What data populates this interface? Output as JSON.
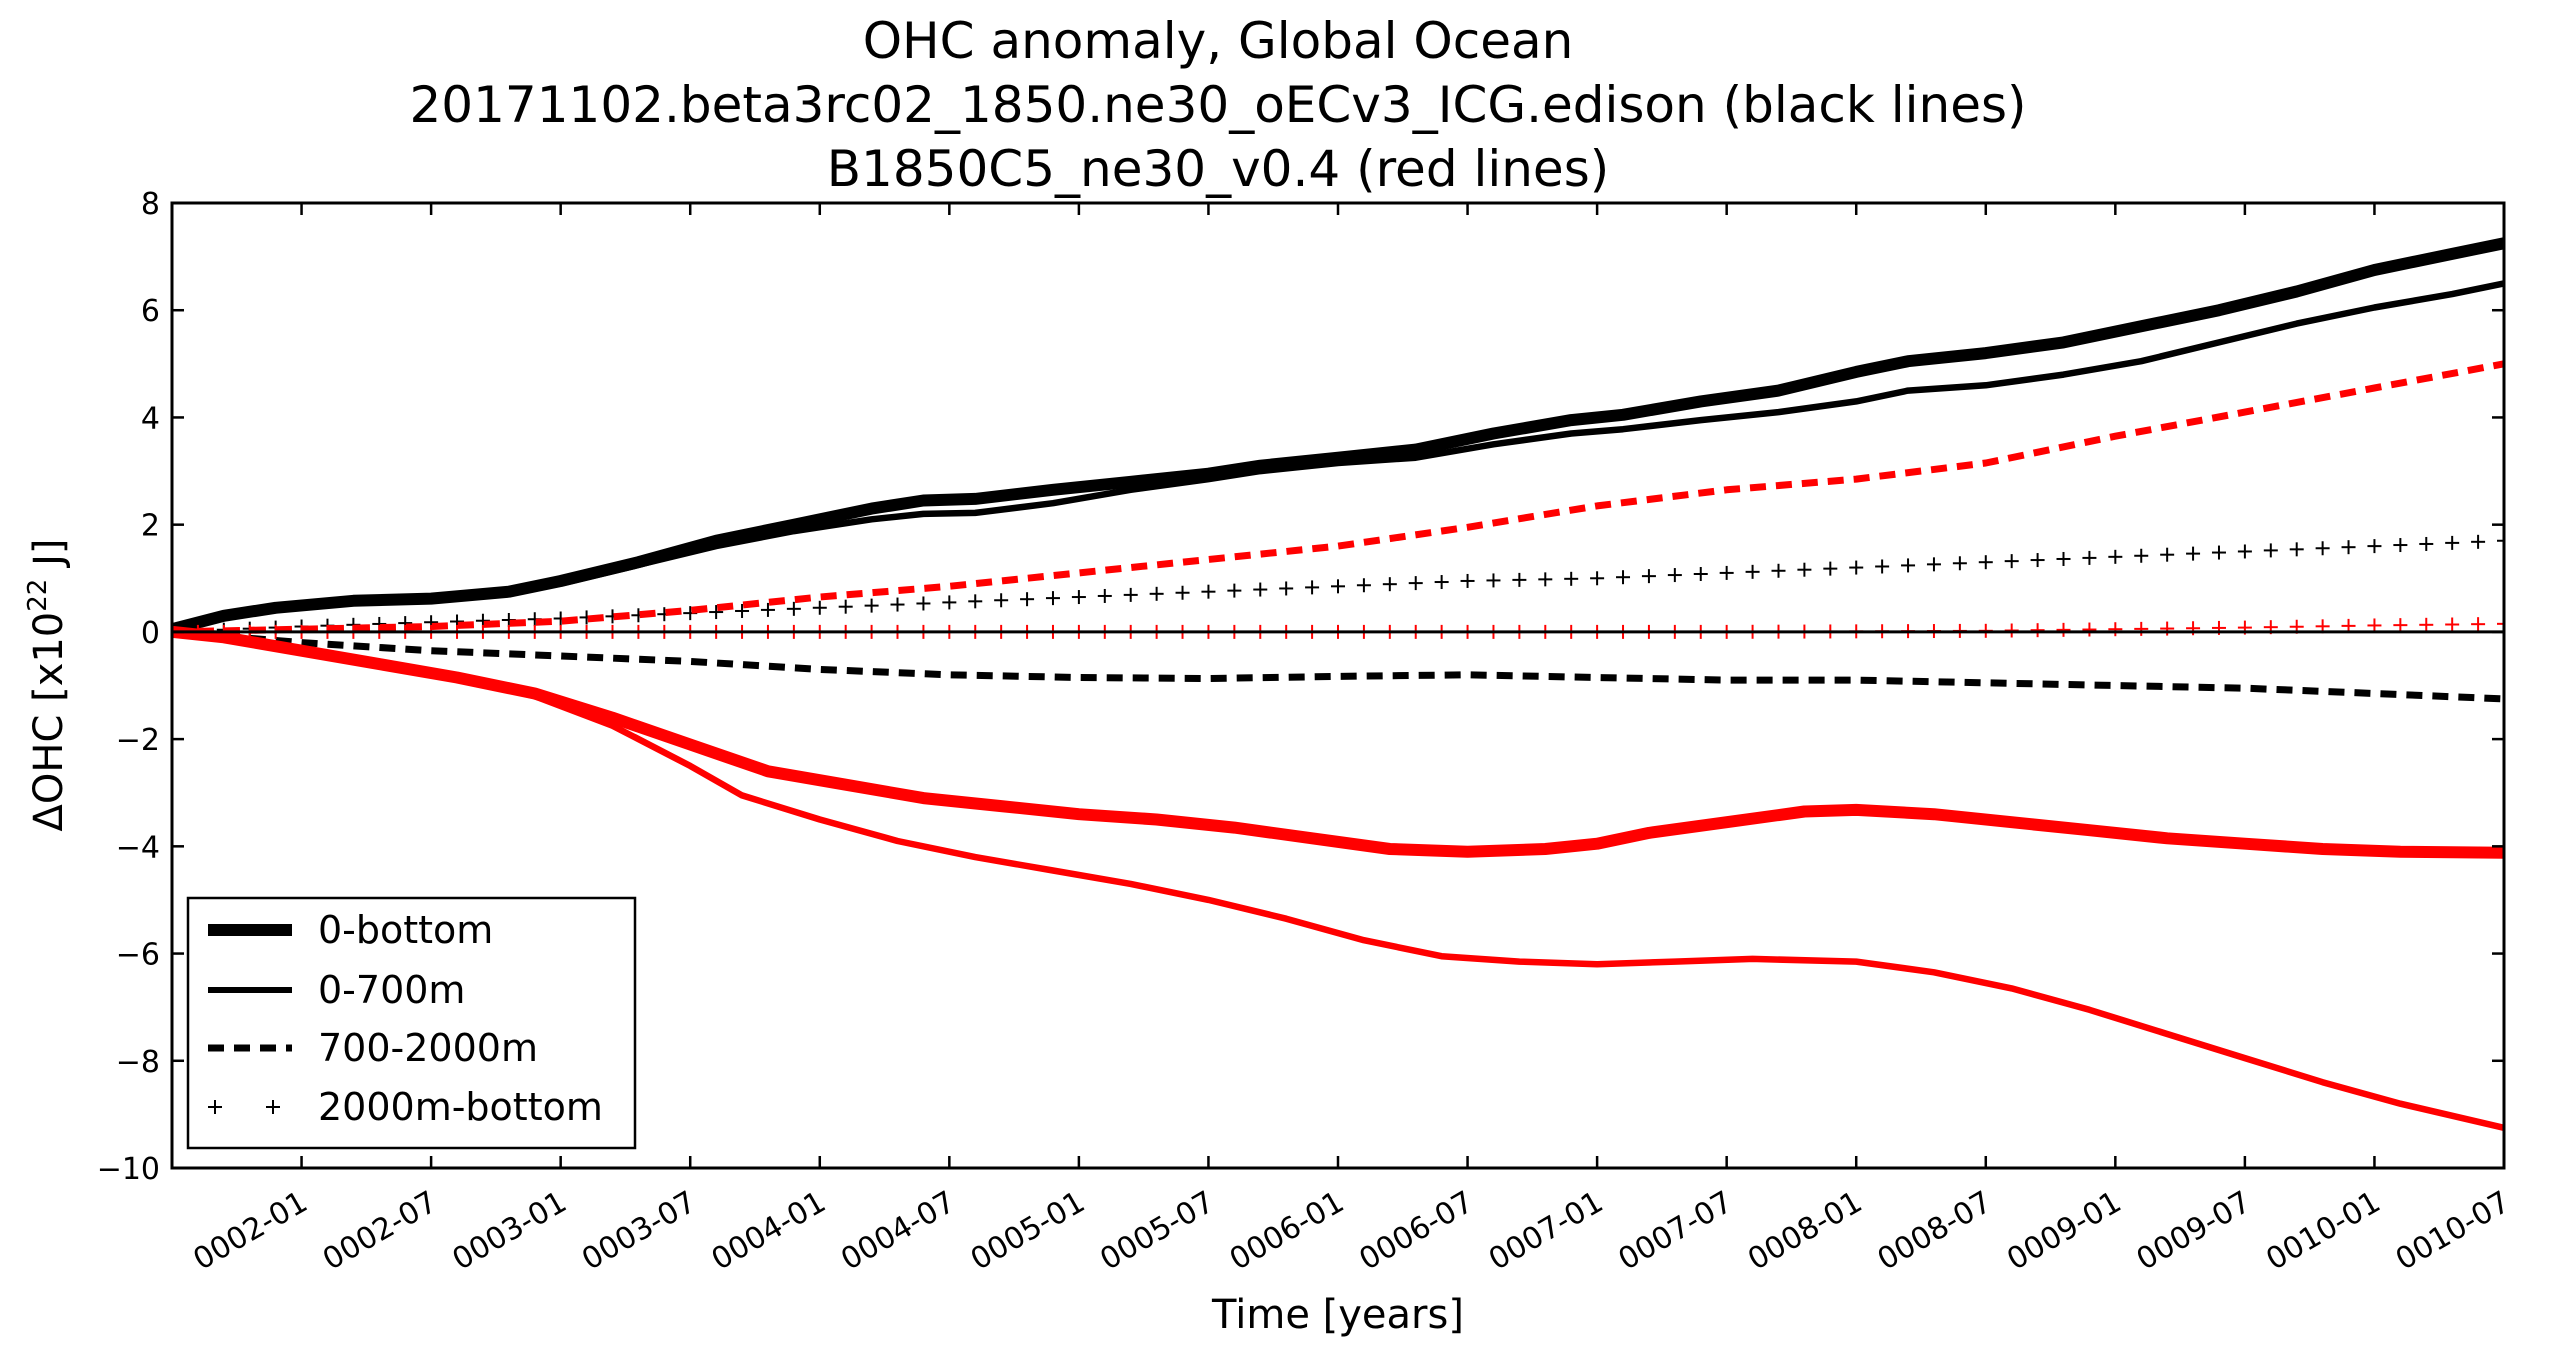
{
  "chart_data": {
    "type": "line",
    "title": [
      "OHC anomaly, Global Ocean",
      "20171102.beta3rc02_1850.ne30_oECv3_ICG.edison (black lines)",
      "B1850C5_ne30_v0.4 (red lines)"
    ],
    "xlabel": "Time [years]",
    "ylabel_main": "ΔOHC  [x10",
    "ylabel_exp": "22",
    "ylabel_tail": " J]",
    "xlim": [
      1.5,
      10.5
    ],
    "ylim": [
      -10,
      8
    ],
    "x_ticks": [
      2.0,
      2.5,
      3.0,
      3.5,
      4.0,
      4.5,
      5.0,
      5.5,
      6.0,
      6.5,
      7.0,
      7.5,
      8.0,
      8.5,
      9.0,
      9.5,
      10.0,
      10.5
    ],
    "x_tick_labels": [
      "0002-01",
      "0002-07",
      "0003-01",
      "0003-07",
      "0004-01",
      "0004-07",
      "0005-01",
      "0005-07",
      "0006-01",
      "0006-07",
      "0007-01",
      "0007-07",
      "0008-01",
      "0008-07",
      "0009-01",
      "0009-07",
      "0010-01",
      "0010-07"
    ],
    "y_ticks": [
      -10,
      -8,
      -6,
      -4,
      -2,
      0,
      2,
      4,
      6,
      8
    ],
    "y_tick_labels": [
      "−10",
      "−8",
      "−6",
      "−4",
      "−2",
      "0",
      "2",
      "4",
      "6",
      "8"
    ],
    "zero_line": true,
    "grid": false,
    "legend_position": "bottom-left",
    "legend": [
      {
        "label": "0-bottom",
        "style": "thick"
      },
      {
        "label": "0-700m",
        "style": "solid"
      },
      {
        "label": "700-2000m",
        "style": "dashed"
      },
      {
        "label": "2000m-bottom",
        "style": "plus"
      }
    ],
    "series": [
      {
        "run": "black",
        "depth": "0-bottom",
        "style": "thick",
        "color": "#000000",
        "points": [
          [
            1.5,
            0.05
          ],
          [
            1.7,
            0.3
          ],
          [
            1.9,
            0.45
          ],
          [
            2.2,
            0.58
          ],
          [
            2.5,
            0.62
          ],
          [
            2.8,
            0.75
          ],
          [
            3.0,
            0.95
          ],
          [
            3.3,
            1.3
          ],
          [
            3.6,
            1.7
          ],
          [
            3.9,
            2.0
          ],
          [
            4.2,
            2.3
          ],
          [
            4.4,
            2.45
          ],
          [
            4.6,
            2.48
          ],
          [
            4.9,
            2.65
          ],
          [
            5.2,
            2.8
          ],
          [
            5.5,
            2.95
          ],
          [
            5.7,
            3.1
          ],
          [
            6.0,
            3.25
          ],
          [
            6.3,
            3.4
          ],
          [
            6.6,
            3.7
          ],
          [
            6.9,
            3.95
          ],
          [
            7.1,
            4.05
          ],
          [
            7.4,
            4.3
          ],
          [
            7.7,
            4.5
          ],
          [
            8.0,
            4.85
          ],
          [
            8.2,
            5.05
          ],
          [
            8.5,
            5.2
          ],
          [
            8.8,
            5.4
          ],
          [
            9.1,
            5.7
          ],
          [
            9.4,
            6.0
          ],
          [
            9.7,
            6.35
          ],
          [
            10.0,
            6.75
          ],
          [
            10.3,
            7.05
          ],
          [
            10.5,
            7.25
          ]
        ]
      },
      {
        "run": "black",
        "depth": "0-700m",
        "style": "solid",
        "color": "#000000",
        "points": [
          [
            1.5,
            0.05
          ],
          [
            1.7,
            0.28
          ],
          [
            1.9,
            0.42
          ],
          [
            2.2,
            0.55
          ],
          [
            2.5,
            0.6
          ],
          [
            2.8,
            0.72
          ],
          [
            3.0,
            0.9
          ],
          [
            3.3,
            1.25
          ],
          [
            3.6,
            1.6
          ],
          [
            3.9,
            1.88
          ],
          [
            4.2,
            2.1
          ],
          [
            4.4,
            2.2
          ],
          [
            4.6,
            2.22
          ],
          [
            4.9,
            2.4
          ],
          [
            5.2,
            2.65
          ],
          [
            5.5,
            2.85
          ],
          [
            5.7,
            3.0
          ],
          [
            6.0,
            3.15
          ],
          [
            6.3,
            3.25
          ],
          [
            6.6,
            3.5
          ],
          [
            6.9,
            3.7
          ],
          [
            7.1,
            3.78
          ],
          [
            7.4,
            3.95
          ],
          [
            7.7,
            4.1
          ],
          [
            8.0,
            4.3
          ],
          [
            8.2,
            4.5
          ],
          [
            8.5,
            4.6
          ],
          [
            8.8,
            4.8
          ],
          [
            9.1,
            5.05
          ],
          [
            9.4,
            5.4
          ],
          [
            9.7,
            5.75
          ],
          [
            10.0,
            6.05
          ],
          [
            10.3,
            6.3
          ],
          [
            10.5,
            6.5
          ]
        ]
      },
      {
        "run": "black",
        "depth": "700-2000m",
        "style": "dashed",
        "color": "#000000",
        "points": [
          [
            1.5,
            0.0
          ],
          [
            2.0,
            -0.2
          ],
          [
            2.5,
            -0.35
          ],
          [
            3.0,
            -0.45
          ],
          [
            3.5,
            -0.55
          ],
          [
            4.0,
            -0.7
          ],
          [
            4.5,
            -0.8
          ],
          [
            5.0,
            -0.85
          ],
          [
            5.5,
            -0.87
          ],
          [
            6.0,
            -0.83
          ],
          [
            6.5,
            -0.8
          ],
          [
            7.0,
            -0.85
          ],
          [
            7.5,
            -0.9
          ],
          [
            8.0,
            -0.9
          ],
          [
            8.5,
            -0.95
          ],
          [
            9.0,
            -1.0
          ],
          [
            9.5,
            -1.05
          ],
          [
            10.0,
            -1.15
          ],
          [
            10.5,
            -1.25
          ]
        ]
      },
      {
        "run": "black",
        "depth": "2000m-bottom",
        "style": "plus",
        "color": "#000000",
        "points": [
          [
            1.5,
            0.0
          ],
          [
            2.0,
            0.1
          ],
          [
            2.5,
            0.18
          ],
          [
            3.0,
            0.25
          ],
          [
            3.5,
            0.35
          ],
          [
            4.0,
            0.45
          ],
          [
            4.5,
            0.55
          ],
          [
            5.0,
            0.65
          ],
          [
            5.5,
            0.75
          ],
          [
            6.0,
            0.85
          ],
          [
            6.5,
            0.95
          ],
          [
            7.0,
            1.0
          ],
          [
            7.5,
            1.1
          ],
          [
            8.0,
            1.2
          ],
          [
            8.5,
            1.3
          ],
          [
            9.0,
            1.4
          ],
          [
            9.5,
            1.5
          ],
          [
            10.0,
            1.6
          ],
          [
            10.5,
            1.7
          ]
        ]
      },
      {
        "run": "red",
        "depth": "0-bottom",
        "style": "thick",
        "color": "#ff0000",
        "points": [
          [
            1.5,
            0.0
          ],
          [
            1.7,
            -0.1
          ],
          [
            2.0,
            -0.35
          ],
          [
            2.3,
            -0.6
          ],
          [
            2.6,
            -0.85
          ],
          [
            2.9,
            -1.15
          ],
          [
            3.2,
            -1.6
          ],
          [
            3.5,
            -2.1
          ],
          [
            3.8,
            -2.6
          ],
          [
            4.1,
            -2.85
          ],
          [
            4.4,
            -3.1
          ],
          [
            4.7,
            -3.25
          ],
          [
            5.0,
            -3.4
          ],
          [
            5.3,
            -3.5
          ],
          [
            5.6,
            -3.65
          ],
          [
            5.9,
            -3.85
          ],
          [
            6.2,
            -4.05
          ],
          [
            6.5,
            -4.1
          ],
          [
            6.8,
            -4.05
          ],
          [
            7.0,
            -3.95
          ],
          [
            7.2,
            -3.75
          ],
          [
            7.5,
            -3.55
          ],
          [
            7.8,
            -3.35
          ],
          [
            8.0,
            -3.32
          ],
          [
            8.3,
            -3.4
          ],
          [
            8.6,
            -3.55
          ],
          [
            8.9,
            -3.7
          ],
          [
            9.2,
            -3.85
          ],
          [
            9.5,
            -3.95
          ],
          [
            9.8,
            -4.05
          ],
          [
            10.1,
            -4.1
          ],
          [
            10.5,
            -4.12
          ]
        ]
      },
      {
        "run": "red",
        "depth": "0-700m",
        "style": "solid",
        "color": "#ff0000",
        "points": [
          [
            1.5,
            0.0
          ],
          [
            1.7,
            -0.1
          ],
          [
            2.0,
            -0.35
          ],
          [
            2.3,
            -0.6
          ],
          [
            2.6,
            -0.85
          ],
          [
            2.9,
            -1.2
          ],
          [
            3.2,
            -1.75
          ],
          [
            3.5,
            -2.5
          ],
          [
            3.7,
            -3.05
          ],
          [
            4.0,
            -3.5
          ],
          [
            4.3,
            -3.9
          ],
          [
            4.6,
            -4.2
          ],
          [
            4.9,
            -4.45
          ],
          [
            5.2,
            -4.7
          ],
          [
            5.5,
            -5.0
          ],
          [
            5.8,
            -5.35
          ],
          [
            6.1,
            -5.75
          ],
          [
            6.4,
            -6.05
          ],
          [
            6.7,
            -6.15
          ],
          [
            7.0,
            -6.2
          ],
          [
            7.3,
            -6.15
          ],
          [
            7.6,
            -6.1
          ],
          [
            8.0,
            -6.15
          ],
          [
            8.3,
            -6.35
          ],
          [
            8.6,
            -6.65
          ],
          [
            8.9,
            -7.05
          ],
          [
            9.2,
            -7.5
          ],
          [
            9.5,
            -7.95
          ],
          [
            9.8,
            -8.4
          ],
          [
            10.1,
            -8.8
          ],
          [
            10.5,
            -9.25
          ]
        ]
      },
      {
        "run": "red",
        "depth": "700-2000m",
        "style": "dashed",
        "color": "#ff0000",
        "points": [
          [
            1.5,
            0.0
          ],
          [
            2.0,
            0.05
          ],
          [
            2.5,
            0.1
          ],
          [
            3.0,
            0.2
          ],
          [
            3.5,
            0.4
          ],
          [
            4.0,
            0.65
          ],
          [
            4.5,
            0.85
          ],
          [
            5.0,
            1.1
          ],
          [
            5.5,
            1.35
          ],
          [
            6.0,
            1.6
          ],
          [
            6.5,
            1.95
          ],
          [
            7.0,
            2.35
          ],
          [
            7.5,
            2.65
          ],
          [
            8.0,
            2.85
          ],
          [
            8.5,
            3.15
          ],
          [
            9.0,
            3.65
          ],
          [
            9.5,
            4.1
          ],
          [
            10.0,
            4.55
          ],
          [
            10.5,
            5.0
          ]
        ]
      },
      {
        "run": "red",
        "depth": "2000m-bottom",
        "style": "plus",
        "color": "#ff0000",
        "points": [
          [
            1.5,
            0.0
          ],
          [
            2.5,
            0.0
          ],
          [
            3.5,
            0.0
          ],
          [
            4.5,
            0.0
          ],
          [
            5.5,
            0.0
          ],
          [
            6.5,
            0.0
          ],
          [
            7.5,
            0.0
          ],
          [
            8.5,
            0.02
          ],
          [
            9.0,
            0.05
          ],
          [
            9.5,
            0.08
          ],
          [
            10.0,
            0.12
          ],
          [
            10.5,
            0.15
          ]
        ]
      }
    ]
  }
}
